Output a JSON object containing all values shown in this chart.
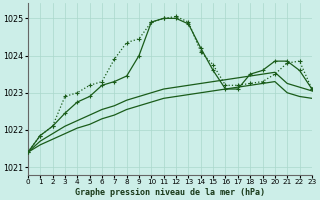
{
  "title": "Graphe pression niveau de la mer (hPa)",
  "bg_color": "#cceee8",
  "grid_color": "#aad8cc",
  "line_dark": "#1a5c1a",
  "xlim": [
    0,
    23
  ],
  "ylim": [
    1020.8,
    1025.4
  ],
  "yticks": [
    1021,
    1022,
    1023,
    1024,
    1025
  ],
  "xticks": [
    0,
    1,
    2,
    3,
    4,
    5,
    6,
    7,
    8,
    9,
    10,
    11,
    12,
    13,
    14,
    15,
    16,
    17,
    18,
    19,
    20,
    21,
    22,
    23
  ],
  "line_dotted_x": [
    0,
    1,
    2,
    3,
    4,
    5,
    6,
    7,
    8,
    9,
    10,
    11,
    12,
    13,
    14,
    15,
    16,
    17,
    18,
    19,
    20,
    21,
    22,
    23
  ],
  "line_dotted_y": [
    1021.4,
    1021.85,
    1022.1,
    1022.9,
    1023.0,
    1023.2,
    1023.3,
    1023.9,
    1024.35,
    1024.45,
    1024.9,
    1025.0,
    1025.05,
    1024.9,
    1024.1,
    1023.75,
    1023.2,
    1023.2,
    1023.25,
    1023.3,
    1023.5,
    1023.8,
    1023.85,
    1023.1
  ],
  "line_solid_x": [
    0,
    1,
    2,
    3,
    4,
    5,
    6,
    7,
    8,
    9,
    10,
    11,
    12,
    13,
    14,
    15,
    16,
    17,
    18,
    19,
    20,
    21,
    22,
    23
  ],
  "line_solid_y": [
    1021.4,
    1021.85,
    1022.1,
    1022.45,
    1022.75,
    1022.9,
    1023.2,
    1023.3,
    1023.45,
    1024.0,
    1024.9,
    1025.0,
    1025.0,
    1024.85,
    1024.2,
    1023.6,
    1023.1,
    1023.1,
    1023.5,
    1023.6,
    1023.85,
    1023.85,
    1023.6,
    1023.1
  ],
  "line_flat1_x": [
    0,
    1,
    2,
    3,
    4,
    5,
    6,
    7,
    8,
    9,
    10,
    11,
    12,
    13,
    14,
    15,
    16,
    17,
    18,
    19,
    20,
    21,
    22,
    23
  ],
  "line_flat1_y": [
    1021.4,
    1021.6,
    1021.75,
    1021.9,
    1022.05,
    1022.15,
    1022.3,
    1022.4,
    1022.55,
    1022.65,
    1022.75,
    1022.85,
    1022.9,
    1022.95,
    1023.0,
    1023.05,
    1023.1,
    1023.15,
    1023.2,
    1023.25,
    1023.3,
    1023.0,
    1022.9,
    1022.85
  ],
  "line_flat2_x": [
    0,
    1,
    2,
    3,
    4,
    5,
    6,
    7,
    8,
    9,
    10,
    11,
    12,
    13,
    14,
    15,
    16,
    17,
    18,
    19,
    20,
    21,
    22,
    23
  ],
  "line_flat2_y": [
    1021.4,
    1021.7,
    1021.9,
    1022.1,
    1022.25,
    1022.4,
    1022.55,
    1022.65,
    1022.8,
    1022.9,
    1023.0,
    1023.1,
    1023.15,
    1023.2,
    1023.25,
    1023.3,
    1023.35,
    1023.4,
    1023.45,
    1023.5,
    1023.55,
    1023.25,
    1023.15,
    1023.05
  ]
}
